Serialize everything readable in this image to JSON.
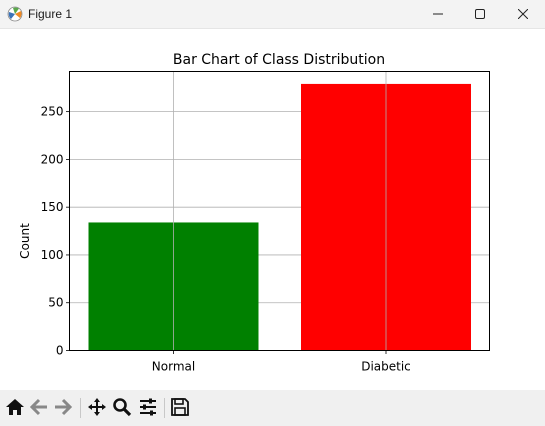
{
  "window": {
    "title": "Figure 1"
  },
  "toolbar": {
    "buttons": [
      "home-icon",
      "back-arrow-icon",
      "forward-arrow-icon",
      "pan-icon",
      "zoom-icon",
      "configure-subplots-icon",
      "save-icon"
    ]
  },
  "chart_data": {
    "type": "bar",
    "title": "Bar Chart of Class Distribution",
    "xlabel": "",
    "ylabel": "Count",
    "categories": [
      "Normal",
      "Diabetic"
    ],
    "values": [
      134,
      279
    ],
    "colors": [
      "#008000",
      "#ff0000"
    ],
    "ylim": [
      0,
      292
    ],
    "yticks": [
      0,
      50,
      100,
      150,
      200,
      250
    ],
    "grid": true
  }
}
